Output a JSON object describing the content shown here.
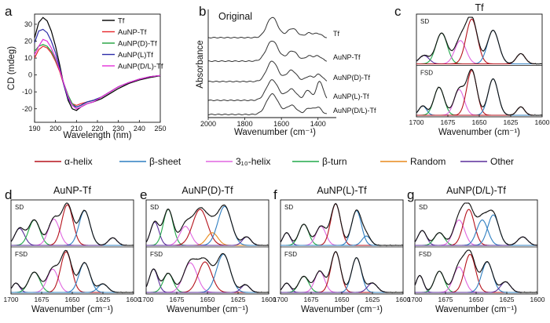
{
  "panel_letters": [
    "a",
    "b",
    "c",
    "d",
    "e",
    "f",
    "g"
  ],
  "colors": {
    "alpha_helix": "#b5121b",
    "beta_sheet": "#2f7fc1",
    "helix_310": "#e066e0",
    "beta_turn": "#22a84a",
    "random": "#e8891c",
    "other": "#5a2d9a",
    "sum": "#111111",
    "data": "#222222",
    "Tf": "#000000",
    "AuNP-Tf": "#e8262c",
    "AuNP(D)-Tf": "#1fa03c",
    "AuNP(L)Tf": "#2c2ca8",
    "AuNP(D/L)-Tf": "#e22fd8"
  },
  "component_legend": [
    "α-helix",
    "β-sheet",
    "3₁₀-helix",
    "β-turn",
    "Random",
    "Other"
  ],
  "component_keys": [
    "alpha_helix",
    "beta_sheet",
    "helix_310",
    "beta_turn",
    "random",
    "other"
  ],
  "band_labels": {
    "sd": "SD",
    "fsd": "FSD"
  },
  "chart_data": [
    {
      "id": "a",
      "type": "line",
      "xlabel": "Wavelength (nm)",
      "ylabel": "CD (mdeg)",
      "xlim": [
        190,
        250
      ],
      "ylim": [
        -28,
        36
      ],
      "xticks": [
        190,
        200,
        210,
        220,
        230,
        240,
        250
      ],
      "yticks": [
        -20,
        -10,
        0,
        10,
        20,
        30
      ],
      "legend_position": "top-right",
      "series": [
        {
          "name": "Tf",
          "x": [
            190,
            192,
            194,
            196,
            198,
            200,
            202,
            204,
            206,
            208,
            210,
            212,
            215,
            218,
            222,
            226,
            230,
            235,
            240,
            245,
            250
          ],
          "y": [
            22,
            31,
            34,
            32,
            26,
            17,
            6,
            -6,
            -15,
            -20,
            -21,
            -19,
            -17,
            -16,
            -14,
            -11,
            -8,
            -5,
            -3,
            -1.5,
            -0.5
          ]
        },
        {
          "name": "AuNP-Tf",
          "x": [
            190,
            192,
            194,
            196,
            198,
            200,
            202,
            204,
            206,
            208,
            210,
            212,
            215,
            218,
            222,
            226,
            230,
            235,
            240,
            245,
            250
          ],
          "y": [
            10,
            15,
            17,
            16,
            13,
            8,
            2,
            -6,
            -13,
            -17,
            -18,
            -17,
            -16,
            -15,
            -13,
            -10,
            -7,
            -4.5,
            -2.5,
            -1,
            -0.3
          ]
        },
        {
          "name": "AuNP(D)-Tf",
          "x": [
            190,
            192,
            194,
            196,
            198,
            200,
            202,
            204,
            206,
            208,
            210,
            212,
            215,
            218,
            222,
            226,
            230,
            235,
            240,
            245,
            250
          ],
          "y": [
            14,
            17,
            18,
            17,
            14,
            9,
            3,
            -5,
            -12,
            -17,
            -19,
            -18,
            -16,
            -15,
            -13,
            -10,
            -7,
            -4.5,
            -2.5,
            -1,
            -0.3
          ]
        },
        {
          "name": "AuNP(L)Tf",
          "x": [
            190,
            192,
            194,
            196,
            198,
            200,
            202,
            204,
            206,
            208,
            210,
            212,
            215,
            218,
            222,
            226,
            230,
            235,
            240,
            245,
            250
          ],
          "y": [
            19,
            26,
            27,
            25,
            20,
            13,
            4,
            -6,
            -14,
            -18,
            -19,
            -18,
            -16,
            -15,
            -13,
            -10,
            -7,
            -4.5,
            -2.5,
            -1,
            -0.3
          ]
        },
        {
          "name": "AuNP(D/L)-Tf",
          "x": [
            190,
            192,
            194,
            196,
            198,
            200,
            202,
            204,
            206,
            208,
            210,
            212,
            215,
            218,
            222,
            226,
            230,
            235,
            240,
            245,
            250
          ],
          "y": [
            12,
            17,
            21,
            20,
            16,
            10,
            3,
            -5,
            -13,
            -18,
            -20,
            -19,
            -17,
            -16,
            -13,
            -10,
            -7,
            -4.5,
            -2.5,
            -1,
            -0.3
          ]
        }
      ]
    },
    {
      "id": "b",
      "type": "line",
      "title": "Original",
      "xlabel": "Wavenumber (cm⁻¹)",
      "ylabel": "Absorbance",
      "xlim": [
        2000,
        1300
      ],
      "xticks": [
        2000,
        1800,
        1600,
        1400
      ],
      "y_ticks_shown": false,
      "series": [
        {
          "name": "Tf",
          "peaks": [
            [
              1650,
              1.0,
              30
            ],
            [
              1540,
              0.45,
              28
            ],
            [
              1450,
              0.22,
              20
            ],
            [
              1400,
              0.2,
              20
            ]
          ]
        },
        {
          "name": "AuNP-Tf",
          "peaks": [
            [
              1650,
              1.0,
              32
            ],
            [
              1540,
              0.5,
              28
            ],
            [
              1450,
              0.25,
              20
            ],
            [
              1400,
              0.25,
              20
            ]
          ]
        },
        {
          "name": "AuNP(D)-Tf",
          "peaks": [
            [
              1650,
              1.0,
              30
            ],
            [
              1545,
              0.55,
              28
            ],
            [
              1450,
              0.25,
              20
            ],
            [
              1395,
              0.35,
              20
            ]
          ]
        },
        {
          "name": "AuNP(L)-Tf",
          "peaks": [
            [
              1650,
              1.0,
              32
            ],
            [
              1545,
              0.55,
              28
            ],
            [
              1455,
              0.5,
              18
            ],
            [
              1400,
              0.6,
              15
            ],
            [
              1380,
              0.55,
              15
            ]
          ]
        },
        {
          "name": "AuNP(D/L)-Tf",
          "peaks": [
            [
              1650,
              1.0,
              32
            ],
            [
              1545,
              0.45,
              28
            ],
            [
              1450,
              0.3,
              20
            ],
            [
              1400,
              0.35,
              20
            ]
          ]
        }
      ]
    },
    {
      "id": "c",
      "type": "line",
      "title": "Tf",
      "xlabel": "Wavenumber (cm⁻¹)",
      "xlim": [
        1700,
        1600
      ],
      "xticks": [
        1700,
        1675,
        1650,
        1625,
        1600
      ],
      "tick_labels_shown": true,
      "sd_components": [
        {
          "type": "other",
          "center": 1694,
          "height": 0.18,
          "width": 4
        },
        {
          "type": "beta_turn",
          "center": 1680,
          "height": 0.66,
          "width": 4.5
        },
        {
          "type": "helix_310",
          "center": 1665,
          "height": 0.5,
          "width": 4.5
        },
        {
          "type": "alpha_helix",
          "center": 1656,
          "height": 0.96,
          "width": 4.5
        },
        {
          "type": "beta_sheet",
          "center": 1639,
          "height": 0.72,
          "width": 4.5
        },
        {
          "type": "alpha_helix",
          "center": 1617,
          "height": 0.22,
          "width": 3.5
        }
      ],
      "fsd_components": [
        {
          "type": "beta_sheet",
          "center": 1695,
          "height": 0.2,
          "width": 3
        },
        {
          "type": "beta_turn",
          "center": 1682,
          "height": 0.6,
          "width": 4
        },
        {
          "type": "helix_310",
          "center": 1666,
          "height": 0.55,
          "width": 4
        },
        {
          "type": "alpha_helix",
          "center": 1656,
          "height": 0.96,
          "width": 4
        },
        {
          "type": "beta_sheet",
          "center": 1639,
          "height": 0.78,
          "width": 4
        },
        {
          "type": "alpha_helix",
          "center": 1617,
          "height": 0.18,
          "width": 3
        }
      ]
    },
    {
      "id": "d",
      "type": "line",
      "title": "AuNP-Tf",
      "xlabel": "Wavenumber (cm⁻¹)",
      "xlim": [
        1700,
        1600
      ],
      "xticks": [
        1700,
        1675,
        1650,
        1625,
        1600
      ],
      "sd_components": [
        {
          "type": "other",
          "center": 1693,
          "height": 0.4,
          "width": 4
        },
        {
          "type": "beta_turn",
          "center": 1681,
          "height": 0.6,
          "width": 4.5
        },
        {
          "type": "helix_310",
          "center": 1665,
          "height": 0.62,
          "width": 4.5
        },
        {
          "type": "alpha_helix",
          "center": 1654,
          "height": 0.96,
          "width": 4.5
        },
        {
          "type": "beta_sheet",
          "center": 1640,
          "height": 0.82,
          "width": 4.5
        },
        {
          "type": "other",
          "center": 1617,
          "height": 0.18,
          "width": 3.5
        }
      ],
      "fsd_components": [
        {
          "type": "other",
          "center": 1696,
          "height": 0.22,
          "width": 3
        },
        {
          "type": "beta_turn",
          "center": 1681,
          "height": 0.48,
          "width": 4.5
        },
        {
          "type": "helix_310",
          "center": 1666,
          "height": 0.55,
          "width": 4.5
        },
        {
          "type": "alpha_helix",
          "center": 1655,
          "height": 0.96,
          "width": 4.5
        },
        {
          "type": "beta_sheet",
          "center": 1640,
          "height": 0.7,
          "width": 4.5
        },
        {
          "type": "beta_sheet",
          "center": 1625,
          "height": 0.2,
          "width": 4
        }
      ]
    },
    {
      "id": "e",
      "type": "line",
      "title": "AuNP(D)-Tf",
      "xlabel": "Wavenumber (cm⁻¹)",
      "xlim": [
        1700,
        1600
      ],
      "xticks": [
        1700,
        1675,
        1650,
        1625,
        1600
      ],
      "sd_components": [
        {
          "type": "other",
          "center": 1693,
          "height": 0.55,
          "width": 3.5
        },
        {
          "type": "beta_turn",
          "center": 1682,
          "height": 0.85,
          "width": 4
        },
        {
          "type": "helix_310",
          "center": 1668,
          "height": 0.45,
          "width": 4.5
        },
        {
          "type": "alpha_helix",
          "center": 1656,
          "height": 0.85,
          "width": 6
        },
        {
          "type": "random",
          "center": 1646,
          "height": 0.3,
          "width": 4.5
        },
        {
          "type": "beta_sheet",
          "center": 1636,
          "height": 0.92,
          "width": 5.5
        },
        {
          "type": "other",
          "center": 1618,
          "height": 0.2,
          "width": 3.5
        }
      ],
      "fsd_components": [
        {
          "type": "other",
          "center": 1694,
          "height": 0.55,
          "width": 3.5
        },
        {
          "type": "beta_turn",
          "center": 1682,
          "height": 0.45,
          "width": 4
        },
        {
          "type": "helix_310",
          "center": 1664,
          "height": 0.7,
          "width": 5.5
        },
        {
          "type": "alpha_helix",
          "center": 1652,
          "height": 0.72,
          "width": 5.5
        },
        {
          "type": "beta_sheet",
          "center": 1637,
          "height": 0.9,
          "width": 5.5
        },
        {
          "type": "other",
          "center": 1619,
          "height": 0.18,
          "width": 3.5
        }
      ]
    },
    {
      "id": "f",
      "type": "line",
      "title": "AuNP(L)-Tf",
      "xlabel": "Wavenumber (cm⁻¹)",
      "xlim": [
        1700,
        1600
      ],
      "xticks": [
        1700,
        1675,
        1650,
        1625,
        1600
      ],
      "sd_components": [
        {
          "type": "other",
          "center": 1695,
          "height": 0.3,
          "width": 3
        },
        {
          "type": "beta_turn",
          "center": 1681,
          "height": 0.5,
          "width": 4
        },
        {
          "type": "helix_310",
          "center": 1667,
          "height": 0.45,
          "width": 4
        },
        {
          "type": "alpha_helix",
          "center": 1655,
          "height": 0.98,
          "width": 4
        },
        {
          "type": "beta_sheet",
          "center": 1638,
          "height": 0.82,
          "width": 4
        },
        {
          "type": "beta_sheet",
          "center": 1630,
          "height": 0.22,
          "width": 3.5
        }
      ],
      "fsd_components": [
        {
          "type": "other",
          "center": 1695,
          "height": 0.22,
          "width": 3
        },
        {
          "type": "beta_turn",
          "center": 1681,
          "height": 0.38,
          "width": 4
        },
        {
          "type": "helix_310",
          "center": 1668,
          "height": 0.5,
          "width": 4
        },
        {
          "type": "alpha_helix",
          "center": 1655,
          "height": 0.96,
          "width": 4
        },
        {
          "type": "beta_sheet",
          "center": 1638,
          "height": 0.82,
          "width": 4
        },
        {
          "type": "other",
          "center": 1625,
          "height": 0.22,
          "width": 4
        }
      ]
    },
    {
      "id": "g",
      "type": "line",
      "title": "AuNP(D/L)-Tf",
      "xlabel": "Wavenumber (cm⁻¹)",
      "xlim": [
        1700,
        1600
      ],
      "xticks": [
        1700,
        1675,
        1650,
        1625,
        1600
      ],
      "sd_components": [
        {
          "type": "other",
          "center": 1694,
          "height": 0.35,
          "width": 3.5
        },
        {
          "type": "beta_turn",
          "center": 1680,
          "height": 0.3,
          "width": 4
        },
        {
          "type": "helix_310",
          "center": 1664,
          "height": 0.6,
          "width": 4.5
        },
        {
          "type": "alpha_helix",
          "center": 1656,
          "height": 0.85,
          "width": 4.5
        },
        {
          "type": "beta_sheet",
          "center": 1645,
          "height": 0.6,
          "width": 4.5
        },
        {
          "type": "beta_sheet",
          "center": 1636,
          "height": 0.72,
          "width": 4.5
        },
        {
          "type": "other",
          "center": 1612,
          "height": 0.2,
          "width": 4
        }
      ],
      "fsd_components": [
        {
          "type": "other",
          "center": 1696,
          "height": 0.4,
          "width": 3
        },
        {
          "type": "beta_turn",
          "center": 1680,
          "height": 0.5,
          "width": 4
        },
        {
          "type": "helix_310",
          "center": 1664,
          "height": 0.6,
          "width": 4.5
        },
        {
          "type": "alpha_helix",
          "center": 1655,
          "height": 0.9,
          "width": 4.5
        },
        {
          "type": "beta_sheet",
          "center": 1641,
          "height": 0.72,
          "width": 4.5
        },
        {
          "type": "other",
          "center": 1626,
          "height": 0.25,
          "width": 4
        }
      ]
    }
  ]
}
